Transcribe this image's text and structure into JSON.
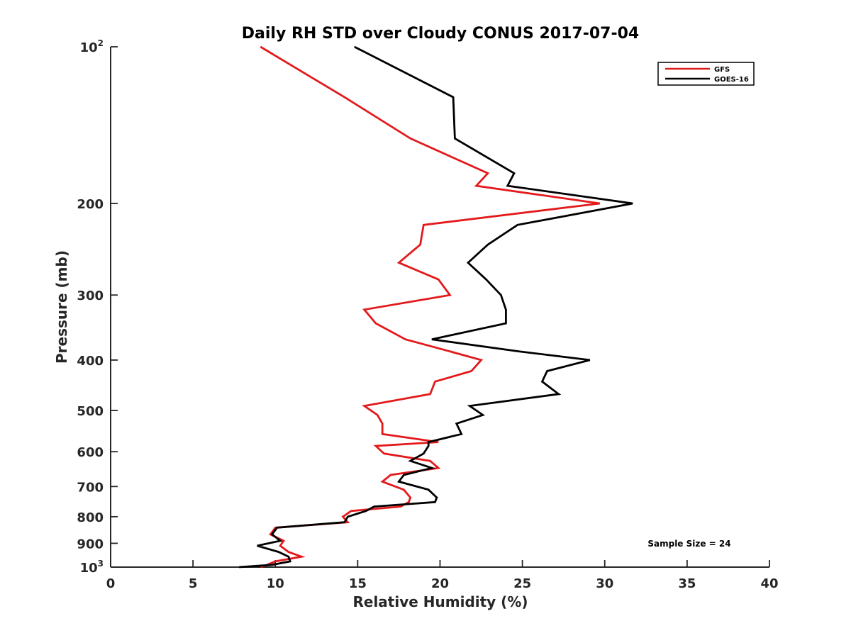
{
  "chart_data": {
    "type": "line",
    "title": "Daily RH STD over Cloudy CONUS 2017-07-04",
    "xlabel": "Relative Humidity (%)",
    "ylabel": "Pressure (mb)",
    "xlim": [
      0,
      40
    ],
    "ylim": [
      1000,
      100
    ],
    "y_scale": "log",
    "y_reversed": true,
    "grid": false,
    "legend_location": "top-right",
    "annotation": "Sample Size = 24",
    "x_ticks": [
      {
        "value": 0,
        "label": "0"
      },
      {
        "value": 5,
        "label": "5"
      },
      {
        "value": 10,
        "label": "10"
      },
      {
        "value": 15,
        "label": "15"
      },
      {
        "value": 20,
        "label": "20"
      },
      {
        "value": 25,
        "label": "25"
      },
      {
        "value": 30,
        "label": "30"
      },
      {
        "value": 35,
        "label": "35"
      },
      {
        "value": 40,
        "label": "40"
      }
    ],
    "y_ticks": [
      {
        "value": 100,
        "base": "10",
        "exp": "2"
      },
      {
        "value": 200,
        "base": "200",
        "exp": ""
      },
      {
        "value": 300,
        "base": "300",
        "exp": ""
      },
      {
        "value": 400,
        "base": "400",
        "exp": ""
      },
      {
        "value": 500,
        "base": "500",
        "exp": ""
      },
      {
        "value": 600,
        "base": "600",
        "exp": ""
      },
      {
        "value": 700,
        "base": "700",
        "exp": ""
      },
      {
        "value": 800,
        "base": "800",
        "exp": ""
      },
      {
        "value": 900,
        "base": "900",
        "exp": ""
      },
      {
        "value": 1000,
        "base": "10",
        "exp": "3"
      }
    ],
    "series": [
      {
        "name": "GFS",
        "color": "#e31a1c",
        "points": [
          {
            "x": 9.1,
            "y": 100
          },
          {
            "x": 14.2,
            "y": 125
          },
          {
            "x": 18.2,
            "y": 150
          },
          {
            "x": 22.9,
            "y": 175
          },
          {
            "x": 22.2,
            "y": 185
          },
          {
            "x": 29.7,
            "y": 200
          },
          {
            "x": 19.0,
            "y": 220
          },
          {
            "x": 18.8,
            "y": 240
          },
          {
            "x": 17.5,
            "y": 260
          },
          {
            "x": 19.9,
            "y": 280
          },
          {
            "x": 20.6,
            "y": 300
          },
          {
            "x": 15.4,
            "y": 320
          },
          {
            "x": 16.1,
            "y": 340
          },
          {
            "x": 17.9,
            "y": 365
          },
          {
            "x": 20.6,
            "y": 385
          },
          {
            "x": 22.5,
            "y": 400
          },
          {
            "x": 21.9,
            "y": 420
          },
          {
            "x": 19.7,
            "y": 440
          },
          {
            "x": 19.4,
            "y": 465
          },
          {
            "x": 15.4,
            "y": 490
          },
          {
            "x": 16.2,
            "y": 510
          },
          {
            "x": 16.5,
            "y": 530
          },
          {
            "x": 16.5,
            "y": 555
          },
          {
            "x": 19.9,
            "y": 575
          },
          {
            "x": 16.1,
            "y": 585
          },
          {
            "x": 16.6,
            "y": 605
          },
          {
            "x": 19.4,
            "y": 625
          },
          {
            "x": 19.9,
            "y": 645
          },
          {
            "x": 17.0,
            "y": 665
          },
          {
            "x": 16.5,
            "y": 685
          },
          {
            "x": 17.8,
            "y": 710
          },
          {
            "x": 18.2,
            "y": 735
          },
          {
            "x": 18.1,
            "y": 750
          },
          {
            "x": 17.6,
            "y": 765
          },
          {
            "x": 14.6,
            "y": 780
          },
          {
            "x": 14.1,
            "y": 800
          },
          {
            "x": 14.4,
            "y": 820
          },
          {
            "x": 10.0,
            "y": 840
          },
          {
            "x": 9.7,
            "y": 865
          },
          {
            "x": 10.5,
            "y": 890
          },
          {
            "x": 10.3,
            "y": 910
          },
          {
            "x": 10.8,
            "y": 935
          },
          {
            "x": 11.6,
            "y": 955
          },
          {
            "x": 10.0,
            "y": 975
          },
          {
            "x": 9.5,
            "y": 990
          },
          {
            "x": 9.1,
            "y": 1000
          }
        ]
      },
      {
        "name": "GOES-16",
        "color": "#000000",
        "points": [
          {
            "x": 14.8,
            "y": 100
          },
          {
            "x": 20.8,
            "y": 125
          },
          {
            "x": 20.9,
            "y": 150
          },
          {
            "x": 24.5,
            "y": 175
          },
          {
            "x": 24.1,
            "y": 185
          },
          {
            "x": 31.7,
            "y": 200
          },
          {
            "x": 24.7,
            "y": 220
          },
          {
            "x": 22.9,
            "y": 240
          },
          {
            "x": 21.7,
            "y": 260
          },
          {
            "x": 22.8,
            "y": 280
          },
          {
            "x": 23.7,
            "y": 300
          },
          {
            "x": 24.0,
            "y": 320
          },
          {
            "x": 24.0,
            "y": 340
          },
          {
            "x": 19.5,
            "y": 365
          },
          {
            "x": 24.8,
            "y": 385
          },
          {
            "x": 29.1,
            "y": 400
          },
          {
            "x": 26.5,
            "y": 420
          },
          {
            "x": 26.2,
            "y": 440
          },
          {
            "x": 27.2,
            "y": 465
          },
          {
            "x": 21.8,
            "y": 490
          },
          {
            "x": 22.6,
            "y": 510
          },
          {
            "x": 21.0,
            "y": 530
          },
          {
            "x": 21.3,
            "y": 555
          },
          {
            "x": 19.3,
            "y": 575
          },
          {
            "x": 19.3,
            "y": 585
          },
          {
            "x": 19.0,
            "y": 605
          },
          {
            "x": 18.2,
            "y": 625
          },
          {
            "x": 19.5,
            "y": 645
          },
          {
            "x": 17.8,
            "y": 665
          },
          {
            "x": 17.5,
            "y": 685
          },
          {
            "x": 19.3,
            "y": 710
          },
          {
            "x": 19.8,
            "y": 735
          },
          {
            "x": 19.7,
            "y": 750
          },
          {
            "x": 16.0,
            "y": 765
          },
          {
            "x": 15.5,
            "y": 780
          },
          {
            "x": 14.4,
            "y": 800
          },
          {
            "x": 14.2,
            "y": 820
          },
          {
            "x": 10.1,
            "y": 840
          },
          {
            "x": 9.8,
            "y": 865
          },
          {
            "x": 10.3,
            "y": 890
          },
          {
            "x": 8.9,
            "y": 910
          },
          {
            "x": 10.2,
            "y": 935
          },
          {
            "x": 10.8,
            "y": 955
          },
          {
            "x": 10.9,
            "y": 975
          },
          {
            "x": 9.8,
            "y": 990
          },
          {
            "x": 7.8,
            "y": 1000
          }
        ]
      }
    ]
  }
}
